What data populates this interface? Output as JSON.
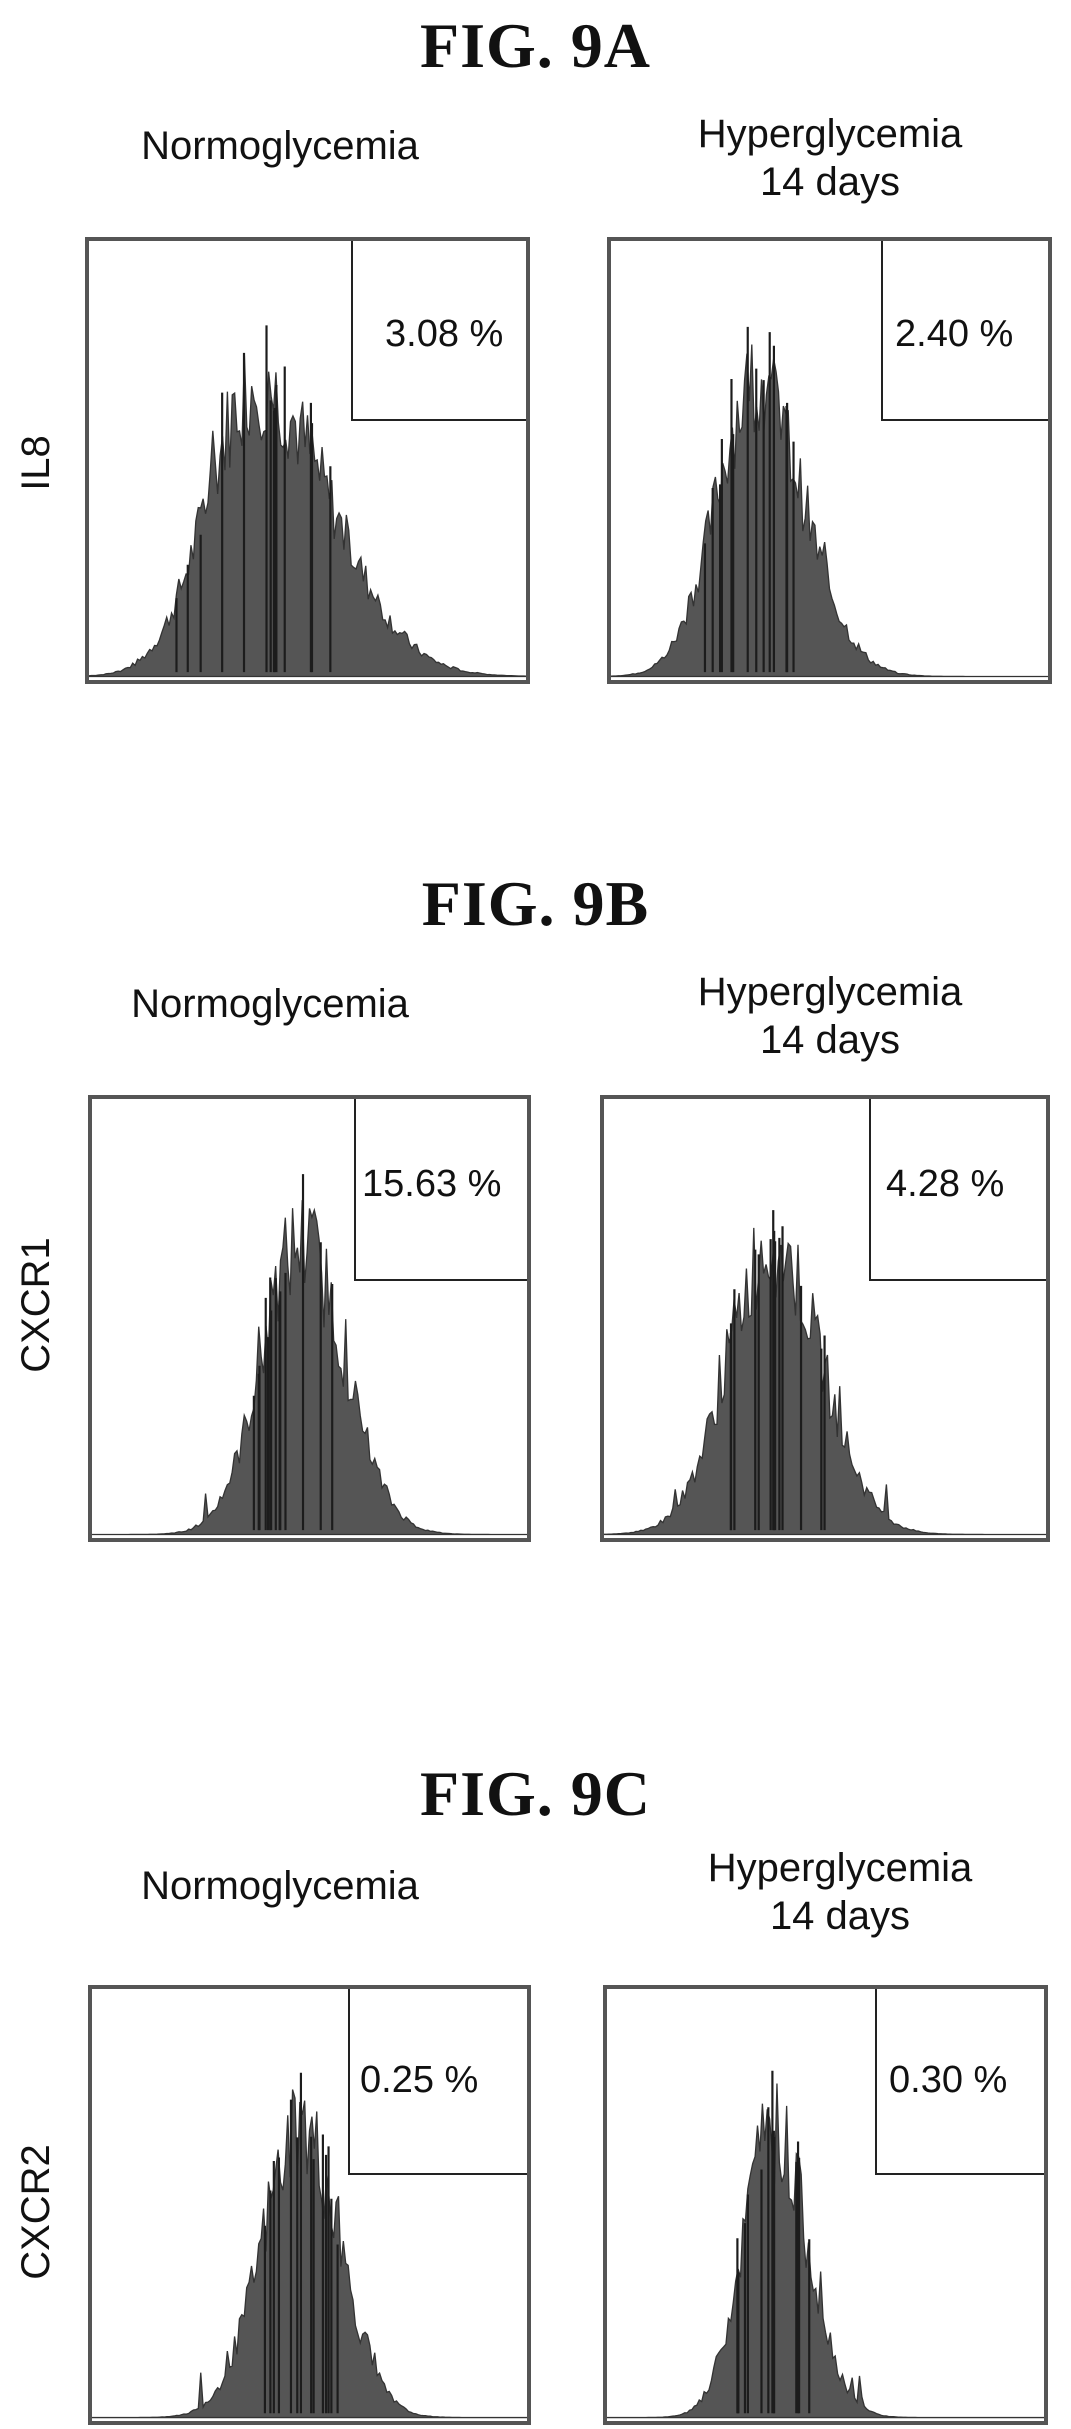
{
  "chart_data": [
    {
      "type": "histogram",
      "title": "FIG. 9A",
      "ylabel": "IL8",
      "panels": [
        {
          "condition": "Normoglycemia",
          "gate_percent_label": "3.08 %",
          "gate_percent": 3.08,
          "peak_x": 0.38,
          "spread": 0.11,
          "spread_right": 0.17,
          "fill": "#555555"
        },
        {
          "condition": "Hyperglycemia\n14 days",
          "gate_percent_label": "2.40 %",
          "gate_percent": 2.4,
          "peak_x": 0.33,
          "spread": 0.09,
          "spread_right": 0.11,
          "fill": "#555555"
        }
      ]
    },
    {
      "type": "histogram",
      "title": "FIG. 9B",
      "ylabel": "CXCR1",
      "panels": [
        {
          "condition": "Normoglycemia",
          "gate_percent_label": "15.63 %",
          "gate_percent": 15.63,
          "peak_x": 0.48,
          "spread": 0.09,
          "spread_right": 0.1,
          "fill": "#555555"
        },
        {
          "condition": "Hyperglycemia\n14 days",
          "gate_percent_label": "4.28 %",
          "gate_percent": 4.28,
          "peak_x": 0.38,
          "spread": 0.1,
          "spread_right": 0.11,
          "fill": "#555555"
        }
      ]
    },
    {
      "type": "histogram",
      "title": "FIG. 9C",
      "ylabel": "CXCR2",
      "panels": [
        {
          "condition": "Normoglycemia",
          "gate_percent_label": "0.25 %",
          "gate_percent": 0.25,
          "peak_x": 0.48,
          "spread": 0.09,
          "spread_right": 0.09,
          "fill": "#555555"
        },
        {
          "condition": "Hyperglycemia\n14 days",
          "gate_percent_label": "0.30 %",
          "gate_percent": 0.3,
          "peak_x": 0.38,
          "spread": 0.07,
          "spread_right": 0.08,
          "fill": "#555555"
        }
      ]
    }
  ]
}
